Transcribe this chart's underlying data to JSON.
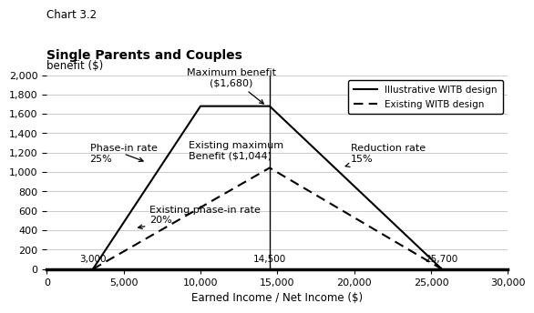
{
  "title_line1": "Chart 3.2",
  "title_line2": "Single Parents and Couples",
  "ylabel": "benefit ($)",
  "xlabel": "Earned Income / Net Income ($)",
  "ylim": [
    0,
    2000
  ],
  "xlim": [
    0,
    30000
  ],
  "yticks": [
    0,
    200,
    400,
    600,
    800,
    1000,
    1200,
    1400,
    1600,
    1800,
    2000
  ],
  "xticks": [
    0,
    5000,
    10000,
    15000,
    20000,
    25000,
    30000
  ],
  "xtick_labels": [
    "0",
    "5,000",
    "10,000",
    "15,000",
    "20,000",
    "25,000",
    "30,000"
  ],
  "ytick_labels": [
    "0",
    "200",
    "400",
    "600",
    "800",
    "1,000",
    "1,200",
    "1,400",
    "1,600",
    "1,800",
    "2,000"
  ],
  "solid_line": {
    "x": [
      3000,
      10000,
      14500,
      25700
    ],
    "y": [
      0,
      1680,
      1680,
      0
    ],
    "color": "#000000",
    "linewidth": 1.5,
    "linestyle": "solid",
    "label": "Illustrative WITB design"
  },
  "dashed_line": {
    "x": [
      3000,
      14500,
      25700
    ],
    "y": [
      0,
      1044,
      0
    ],
    "color": "#000000",
    "linewidth": 1.5,
    "linestyle": "dashed",
    "label": "Existing WITB design"
  },
  "vline_x": 14500,
  "vline_color": "#000000",
  "vline_linewidth": 1.0,
  "background_color": "#ffffff",
  "grid_color": "#cccccc",
  "inline_labels": [
    {
      "x": 3000,
      "text": "3,000"
    },
    {
      "x": 14500,
      "text": "14,500"
    },
    {
      "x": 25700,
      "text": "25,700"
    }
  ]
}
